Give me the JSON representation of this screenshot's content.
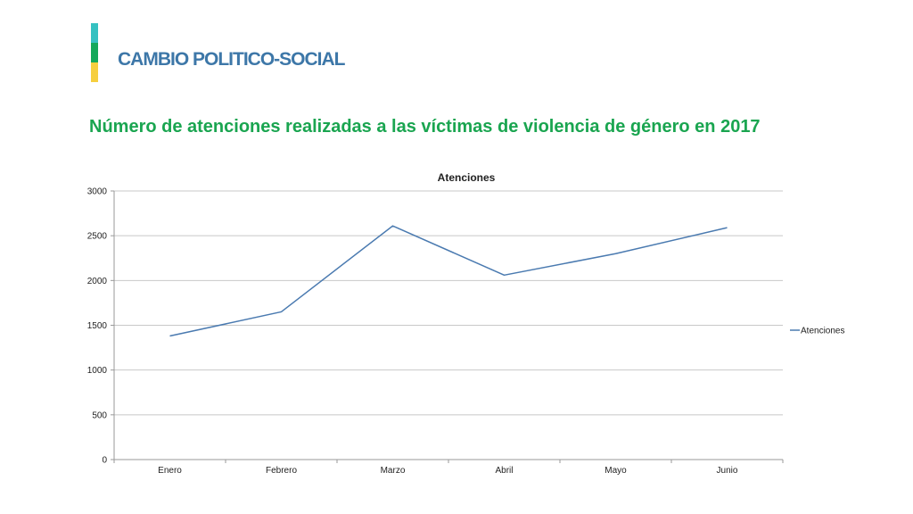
{
  "header": {
    "section_title": "CAMBIO POLITICO-SOCIAL",
    "heading": "Número de atenciones realizadas a las víctimas de violencia de género en 2017"
  },
  "colors": {
    "title_blue": "#3d77a8",
    "heading_green": "#1aa550",
    "accent_teal": "#35c1c1",
    "accent_green": "#13a85a",
    "accent_yellow": "#f6cf3f",
    "series_line": "#4a7ab0",
    "grid": "#c8c8c8",
    "axis": "#999999"
  },
  "chart_data": {
    "type": "line",
    "title": "Atenciones",
    "categories": [
      "Enero",
      "Febrero",
      "Marzo",
      "Abril",
      "Mayo",
      "Junio"
    ],
    "series": [
      {
        "name": "Atenciones",
        "values": [
          1380,
          1650,
          2610,
          2060,
          2300,
          2590
        ]
      }
    ],
    "ylim": [
      0,
      3000
    ],
    "yticks": [
      0,
      500,
      1000,
      1500,
      2000,
      2500,
      3000
    ],
    "grid": true,
    "legend": "right"
  }
}
